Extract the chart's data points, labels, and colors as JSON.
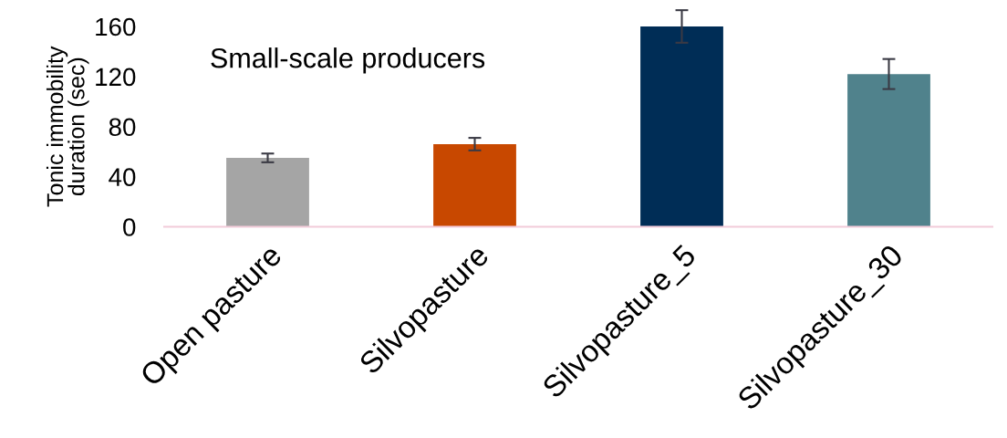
{
  "chart_data": {
    "type": "bar",
    "title": "Small-scale producers",
    "ylabel": "Tonic immobility\nduration (sec)",
    "categories": [
      "Open pasture",
      "Silvopasture",
      "Silvopasture_5",
      "Silvopasture_30"
    ],
    "values": [
      55,
      66,
      160,
      122
    ],
    "errors": [
      3.5,
      5,
      13,
      12
    ],
    "colors": [
      "#a5a5a5",
      "#c84800",
      "#002d56",
      "#50828c"
    ],
    "ylim": [
      0,
      160
    ],
    "yticks": [
      0,
      40,
      80,
      120,
      160
    ],
    "grid": false,
    "legend": false
  }
}
